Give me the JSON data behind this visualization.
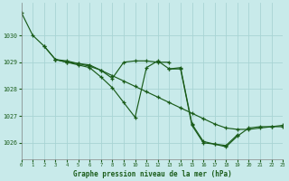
{
  "title": "Graphe pression niveau de la mer (hPa)",
  "bg_color": "#c8eaea",
  "grid_color": "#a8d4d4",
  "line_color": "#1a5c1a",
  "xlim": [
    0,
    23
  ],
  "ylim": [
    1025.4,
    1031.2
  ],
  "yticks": [
    1026,
    1027,
    1028,
    1029,
    1030
  ],
  "xticks": [
    0,
    1,
    2,
    3,
    4,
    5,
    6,
    7,
    8,
    9,
    10,
    11,
    12,
    13,
    14,
    15,
    16,
    17,
    18,
    19,
    20,
    21,
    22,
    23
  ],
  "series": [
    {
      "x": [
        0,
        1,
        2,
        3,
        4,
        5,
        6,
        7,
        8,
        9,
        10,
        11,
        12,
        13,
        14,
        15,
        16,
        17,
        18,
        19,
        20,
        21,
        22,
        23
      ],
      "y": [
        1030.85,
        1030.0,
        1029.6,
        1029.1,
        1029.05,
        1028.95,
        1028.85,
        1028.7,
        1028.5,
        1028.3,
        1028.1,
        1027.9,
        1027.7,
        1027.5,
        1027.3,
        1027.1,
        1026.9,
        1026.7,
        1026.55,
        1026.5,
        1026.5,
        1026.55,
        1026.6,
        1026.6
      ]
    },
    {
      "x": [
        2,
        3,
        4,
        5,
        6,
        7,
        8,
        9,
        10,
        11,
        12,
        13
      ],
      "y": [
        1029.6,
        1029.1,
        1029.0,
        1028.95,
        1028.9,
        1028.7,
        1028.4,
        1029.0,
        1029.05,
        1029.05,
        1029.0,
        1029.0
      ]
    },
    {
      "x": [
        3,
        4,
        5,
        6,
        7,
        8,
        9,
        10,
        11,
        12,
        13,
        14,
        15,
        16,
        17,
        18,
        19,
        20,
        21,
        22,
        23
      ],
      "y": [
        1029.1,
        1029.0,
        1028.9,
        1028.8,
        1028.45,
        1028.05,
        1027.5,
        1026.95,
        1028.8,
        1029.05,
        1028.75,
        1028.75,
        1026.65,
        1026.0,
        1025.95,
        1025.85,
        1026.25,
        1026.55,
        1026.6,
        1026.6,
        1026.65
      ]
    },
    {
      "x": [
        13,
        14,
        15,
        16,
        17,
        18,
        19
      ],
      "y": [
        1028.75,
        1028.8,
        1026.7,
        1026.05,
        1025.95,
        1025.9,
        1026.3
      ]
    }
  ]
}
